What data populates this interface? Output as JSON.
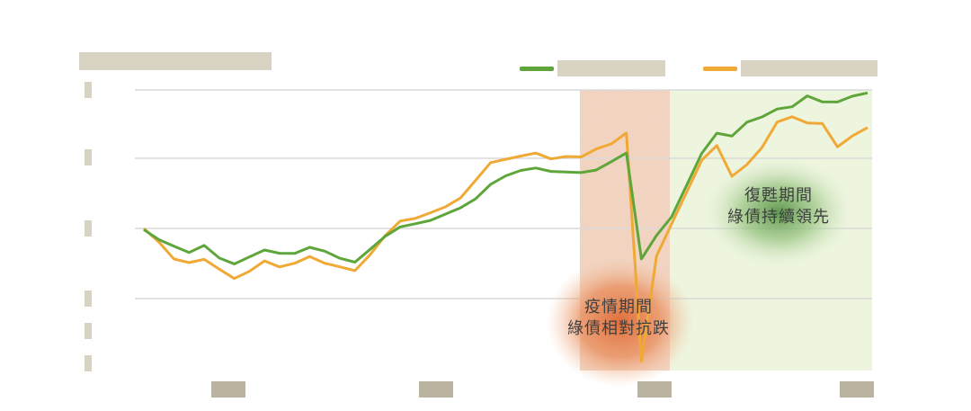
{
  "header": {
    "title": "",
    "subtitle": ""
  },
  "chart_data": {
    "type": "line",
    "title": "",
    "xlabel": "",
    "ylabel": "",
    "x_tick_labels": [
      "",
      "",
      "",
      ""
    ],
    "y_tick_labels": [
      "",
      "",
      "",
      "",
      "",
      ""
    ],
    "grid": true,
    "legend_position": "top-right",
    "colors": {
      "green_series": "#5fa63a",
      "orange_series": "#f0a935",
      "pandemic_shade": "#f6d6c1",
      "recovery_shade": "#eef5df",
      "pandemic_blob": "#e0703a",
      "recovery_blob": "#5f9e4e",
      "title": "#cf8a34"
    },
    "series": [
      {
        "name": "",
        "color": "#5fa63a",
        "y": [
          100,
          97,
          95,
          93,
          95,
          91,
          89,
          91,
          93,
          92,
          92,
          94,
          93,
          91,
          90,
          94,
          98,
          101,
          102,
          103,
          105,
          107,
          110,
          115,
          118,
          120,
          121,
          120,
          120,
          120,
          121,
          124,
          127,
          91,
          98,
          104,
          115,
          126,
          133,
          132,
          137,
          139,
          142,
          143,
          147,
          145,
          145,
          147,
          148
        ]
      },
      {
        "name": "",
        "color": "#f0a935",
        "y": [
          100,
          96,
          91,
          90,
          91,
          88,
          85,
          87,
          90,
          88,
          89,
          91,
          89,
          88,
          87,
          92,
          98,
          103,
          104,
          106,
          108,
          111,
          117,
          123,
          124,
          125,
          126,
          124,
          125,
          125,
          128,
          130,
          134,
          60,
          92,
          102,
          113,
          124,
          129,
          118,
          122,
          128,
          137,
          139,
          137,
          137,
          129,
          133,
          136
        ]
      }
    ],
    "annotations": [
      {
        "label_line1": "疫情期間",
        "label_line2": "綠債相對抗跌"
      },
      {
        "label_line1": "復甦期間",
        "label_line2": "綠債持續領先"
      }
    ]
  }
}
